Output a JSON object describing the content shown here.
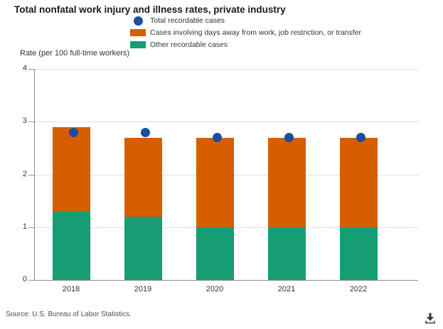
{
  "title": "Total nonfatal work injury and illness rates, private industry",
  "y_axis_title": "Rate (per 100 full-time workers)",
  "source": "Source: U.S. Bureau of Labor Statistics.",
  "colors": {
    "total_dot": "#1b4e9b",
    "dart_bar": "#d55e00",
    "other_bar": "#169d74",
    "gridline": "#c3c3c3",
    "axis": "#8a8a8a",
    "title_text": "#1a1a1a",
    "body_text": "#333333",
    "source_text": "#4d4d4d"
  },
  "legend": {
    "items": [
      {
        "label": "Total recordable cases",
        "swatch": "circle",
        "color": "#1b4e9b"
      },
      {
        "label": "Cases involving days away from work, job restriction, or transfer",
        "swatch": "square",
        "color": "#d55e00"
      },
      {
        "label": "Other recordable cases",
        "swatch": "square",
        "color": "#169d74"
      }
    ]
  },
  "chart_data": {
    "type": "bar",
    "subtype": "stacked-bars-with-scatter-overlay",
    "title": "Total nonfatal work injury and illness rates, private industry",
    "xlabel": "",
    "ylabel": "Rate (per 100 full-time workers)",
    "ylim": [
      0,
      4
    ],
    "yticks": [
      0,
      1,
      2,
      3,
      4
    ],
    "grid": "horizontal-dotted",
    "legend_position": "top",
    "categories": [
      "2018",
      "2019",
      "2020",
      "2021",
      "2022"
    ],
    "series": [
      {
        "name": "Other recordable cases",
        "type": "bar",
        "stack_order": 1,
        "color": "#169d74",
        "values": [
          1.3,
          1.2,
          1.0,
          1.0,
          1.0
        ]
      },
      {
        "name": "Cases involving days away from work, job restriction, or transfer",
        "type": "bar",
        "stack_order": 2,
        "color": "#d55e00",
        "values": [
          1.6,
          1.5,
          1.7,
          1.7,
          1.7
        ]
      },
      {
        "name": "Total recordable cases",
        "type": "scatter",
        "color": "#1b4e9b",
        "values": [
          2.8,
          2.8,
          2.7,
          2.7,
          2.7
        ]
      }
    ]
  }
}
